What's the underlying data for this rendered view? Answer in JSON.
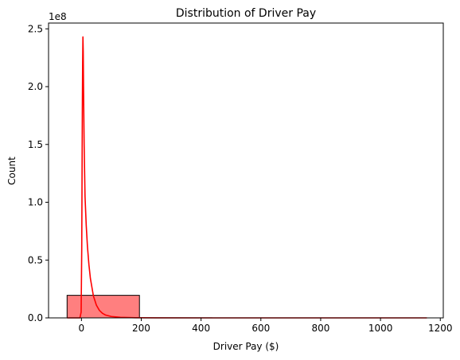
{
  "chart_data": {
    "type": "histogram",
    "title": "Distribution of Driver Pay",
    "xlabel": "Driver Pay ($)",
    "ylabel": "Count",
    "y_offset_label": "1e8",
    "y_scale_factor": 100000000,
    "xlim": [
      -110,
      1210
    ],
    "ylim": [
      0,
      2.55
    ],
    "x_ticks": [
      0,
      200,
      400,
      600,
      800,
      1000,
      1200
    ],
    "y_ticks": [
      0.0,
      0.5,
      1.0,
      1.5,
      2.0,
      2.5
    ],
    "bins": [
      {
        "x0": -48,
        "x1": 194,
        "count": 0.195
      },
      {
        "x0": 194,
        "x1": 436,
        "count": 0.0005
      },
      {
        "x0": 436,
        "x1": 678,
        "count": 0.0
      },
      {
        "x0": 678,
        "x1": 920,
        "count": 0.0
      },
      {
        "x0": 920,
        "x1": 1162,
        "count": 0.0
      }
    ],
    "kde": {
      "x": [
        -48,
        -5,
        -1,
        1,
        2,
        3,
        4,
        5,
        6,
        7,
        9,
        12,
        16,
        20,
        25,
        30,
        40,
        50,
        60,
        70,
        80,
        100,
        130,
        180,
        250,
        400,
        600,
        800,
        1000,
        1155
      ],
      "y": [
        0.0,
        0.0,
        0.05,
        0.6,
        1.2,
        1.8,
        2.2,
        2.43,
        2.3,
        2.0,
        1.5,
        1.05,
        0.8,
        0.62,
        0.46,
        0.34,
        0.19,
        0.11,
        0.065,
        0.04,
        0.025,
        0.012,
        0.005,
        0.0015,
        0.0005,
        0.0001,
        0.0,
        0.0,
        0.0,
        0.0
      ]
    },
    "colors": {
      "bar_fill": "#ff7f7f",
      "bar_edge": "#000000",
      "kde_line": "#ff0000"
    },
    "grid": false
  }
}
